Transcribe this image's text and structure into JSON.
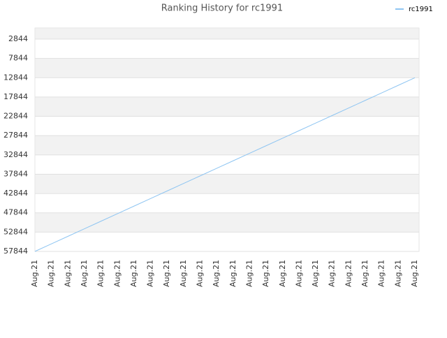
{
  "chart_data": {
    "type": "line",
    "title": "Ranking History for rc1991",
    "categories": [
      "Aug.21",
      "Aug.21",
      "Aug.21",
      "Aug.21",
      "Aug.21",
      "Aug.21",
      "Aug.21",
      "Aug.21",
      "Aug.21",
      "Aug.21",
      "Aug.21",
      "Aug.21",
      "Aug.21",
      "Aug.21",
      "Aug.21",
      "Aug.21",
      "Aug.21",
      "Aug.21",
      "Aug.21",
      "Aug.21",
      "Aug.21",
      "Aug.21",
      "Aug.21",
      "Aug.21"
    ],
    "series": [
      {
        "name": "rc1991",
        "color": "#8ec5f2",
        "values": [
          57844,
          55887,
          53931,
          51974,
          50018,
          48061,
          46105,
          44148,
          42192,
          40235,
          38279,
          36322,
          34366,
          32409,
          30453,
          28496,
          26540,
          24583,
          22627,
          20670,
          18714,
          16757,
          14801,
          12844
        ]
      }
    ],
    "ylim": [
      57844,
      -56
    ],
    "yticks": [
      2844,
      7844,
      12844,
      17844,
      22844,
      27844,
      32844,
      37844,
      42844,
      47844,
      52844,
      57844
    ],
    "grid": true,
    "legend": "top-right"
  }
}
